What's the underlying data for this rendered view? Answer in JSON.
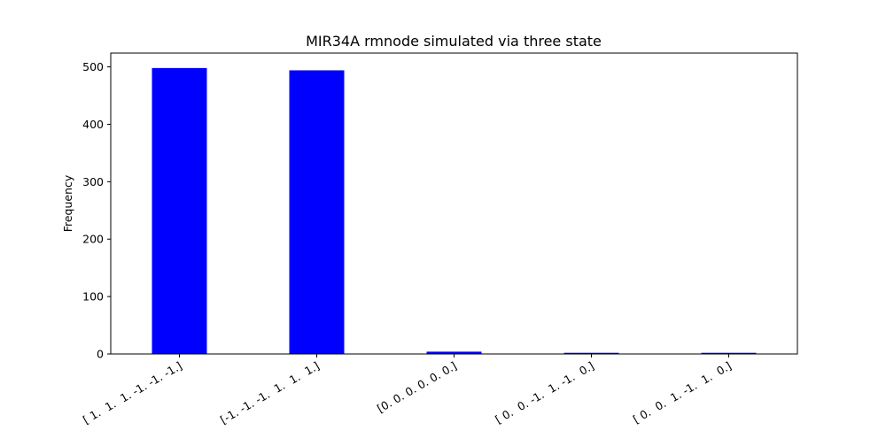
{
  "chart_data": {
    "type": "bar",
    "title": "MIR34A rmnode simulated via three state",
    "xlabel": "",
    "ylabel": "Frequency",
    "categories": [
      "[ 1.  1.  1. -1. -1. -1.]",
      "[-1. -1. -1.  1.  1.  1.]",
      "[0. 0. 0. 0. 0. 0.]",
      "[ 0.  0. -1.  1. -1.  0.]",
      "[ 0.  0.  1. -1.  1.  0.]"
    ],
    "values": [
      498,
      494,
      4,
      2,
      2
    ],
    "ylim": [
      0,
      524
    ],
    "yticks": [
      0,
      100,
      200,
      300,
      400,
      500
    ],
    "bar_color": "#0000ff",
    "grid": false
  }
}
